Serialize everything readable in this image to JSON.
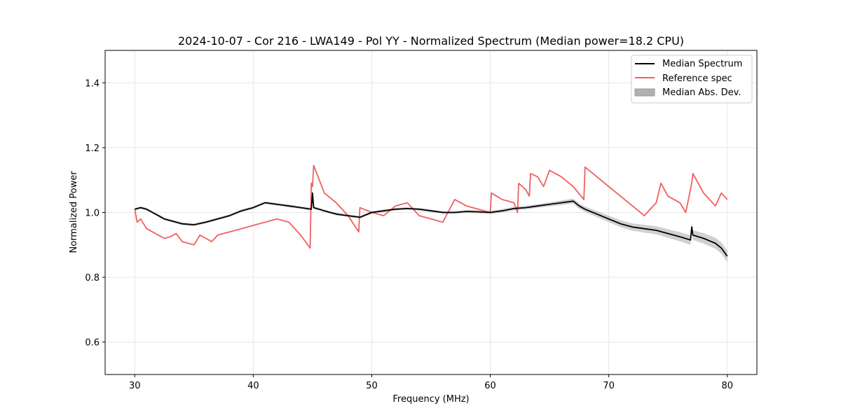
{
  "chart_data": {
    "type": "line",
    "title": "2024-10-07 - Cor 216 - LWA149 - Pol YY - Normalized Spectrum (Median power=18.2 CPU)",
    "xlabel": "Frequency (MHz)",
    "ylabel": "Normalized Power",
    "xlim": [
      27.5,
      82.5
    ],
    "ylim": [
      0.5,
      1.5
    ],
    "xticks": [
      30,
      40,
      50,
      60,
      70,
      80
    ],
    "yticks": [
      0.6,
      0.8,
      1.0,
      1.2,
      1.4
    ],
    "xtick_labels": [
      "30",
      "40",
      "50",
      "60",
      "70",
      "80"
    ],
    "ytick_labels": [
      "0.6",
      "0.8",
      "1.0",
      "1.2",
      "1.4"
    ],
    "grid": true,
    "legend_position": "top-right",
    "legend": [
      "Median Spectrum",
      "Reference spec",
      "Median Abs. Dev."
    ],
    "colors": {
      "median": "#000000",
      "reference": "#f06060",
      "mad_fill": "#b0b0b0"
    },
    "series": [
      {
        "name": "Median Spectrum",
        "x": [
          30.0,
          30.5,
          31.0,
          31.5,
          32.0,
          32.5,
          33.0,
          34.0,
          35.0,
          36.0,
          37.0,
          38.0,
          39.0,
          40.0,
          41.0,
          42.0,
          43.0,
          44.0,
          44.9,
          45.0,
          45.1,
          46.0,
          47.0,
          48.0,
          49.0,
          50.0,
          51.0,
          52.0,
          53.0,
          54.0,
          55.0,
          56.0,
          57.0,
          58.0,
          59.0,
          60.0,
          61.0,
          62.0,
          63.0,
          64.0,
          65.0,
          66.0,
          67.0,
          67.5,
          68.0,
          69.0,
          70.0,
          71.0,
          72.0,
          73.0,
          74.0,
          75.0,
          76.0,
          76.9,
          77.0,
          77.1,
          78.0,
          79.0,
          79.5,
          80.0
        ],
        "values": [
          1.01,
          1.015,
          1.01,
          1.0,
          0.99,
          0.98,
          0.975,
          0.965,
          0.962,
          0.97,
          0.98,
          0.99,
          1.005,
          1.015,
          1.03,
          1.025,
          1.02,
          1.015,
          1.01,
          1.06,
          1.015,
          1.005,
          0.995,
          0.99,
          0.985,
          1.0,
          1.005,
          1.01,
          1.012,
          1.01,
          1.005,
          1.0,
          1.0,
          1.003,
          1.002,
          1.0,
          1.005,
          1.012,
          1.015,
          1.02,
          1.025,
          1.03,
          1.035,
          1.02,
          1.01,
          0.995,
          0.98,
          0.965,
          0.955,
          0.95,
          0.945,
          0.935,
          0.925,
          0.915,
          0.955,
          0.93,
          0.92,
          0.905,
          0.89,
          0.865
        ]
      },
      {
        "name": "Reference spec",
        "x": [
          30.0,
          30.2,
          30.5,
          31.0,
          31.5,
          32.0,
          32.5,
          33.0,
          33.5,
          34.0,
          35.0,
          35.5,
          36.0,
          36.5,
          37.0,
          38.0,
          39.0,
          40.0,
          41.0,
          42.0,
          43.0,
          44.0,
          44.8,
          44.9,
          45.0,
          45.1,
          46.0,
          47.0,
          48.0,
          48.9,
          49.0,
          50.0,
          51.0,
          52.0,
          53.0,
          54.0,
          55.0,
          56.0,
          57.0,
          58.0,
          59.0,
          60.0,
          60.1,
          61.0,
          62.0,
          62.3,
          62.4,
          63.0,
          63.3,
          63.4,
          64.0,
          64.5,
          65.0,
          66.0,
          67.0,
          67.9,
          68.0,
          69.0,
          70.0,
          71.0,
          72.0,
          73.0,
          74.0,
          74.4,
          75.0,
          76.0,
          76.5,
          77.0,
          77.1,
          78.0,
          78.5,
          79.0,
          79.5,
          80.0
        ],
        "values": [
          1.01,
          0.97,
          0.98,
          0.95,
          0.94,
          0.93,
          0.92,
          0.925,
          0.935,
          0.91,
          0.9,
          0.93,
          0.92,
          0.91,
          0.93,
          0.94,
          0.95,
          0.96,
          0.97,
          0.98,
          0.97,
          0.93,
          0.89,
          1.09,
          1.08,
          1.145,
          1.06,
          1.03,
          0.99,
          0.94,
          1.015,
          1.0,
          0.99,
          1.02,
          1.03,
          0.99,
          0.98,
          0.97,
          1.04,
          1.02,
          1.01,
          1.0,
          1.06,
          1.04,
          1.03,
          1.0,
          1.09,
          1.07,
          1.05,
          1.12,
          1.11,
          1.08,
          1.13,
          1.11,
          1.08,
          1.04,
          1.14,
          1.11,
          1.08,
          1.05,
          1.02,
          0.99,
          1.03,
          1.09,
          1.05,
          1.03,
          1.0,
          1.09,
          1.12,
          1.06,
          1.04,
          1.02,
          1.06,
          1.04
        ]
      },
      {
        "name": "Median Abs. Dev.",
        "x": [
          30.0,
          35.0,
          40.0,
          45.0,
          50.0,
          55.0,
          60.0,
          65.0,
          67.0,
          70.0,
          73.0,
          76.0,
          78.0,
          80.0
        ],
        "values": [
          0.004,
          0.004,
          0.004,
          0.004,
          0.004,
          0.004,
          0.005,
          0.006,
          0.008,
          0.01,
          0.012,
          0.014,
          0.016,
          0.018
        ]
      }
    ]
  }
}
